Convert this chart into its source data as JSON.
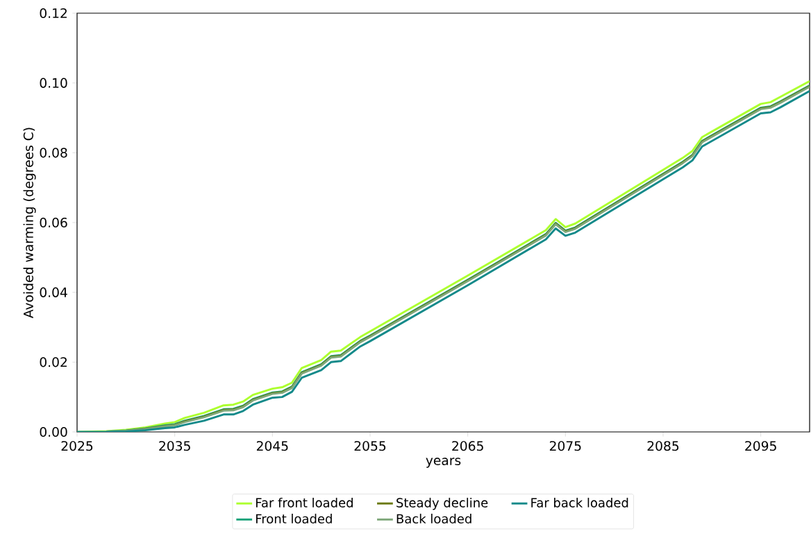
{
  "chart_data": {
    "type": "line",
    "xlabel": "years",
    "ylabel": "Avoided warming (degrees C)",
    "x": [
      2025,
      2028,
      2030,
      2032,
      2034,
      2035,
      2036,
      2038,
      2040,
      2041,
      2042,
      2043,
      2045,
      2046,
      2047,
      2048,
      2050,
      2051,
      2052,
      2054,
      2055,
      2065,
      2073,
      2074,
      2075,
      2076,
      2087,
      2088,
      2089,
      2095,
      2096,
      2097,
      2100
    ],
    "series": [
      {
        "name": "Far front loaded",
        "color": "#adff2f",
        "values": [
          0,
          0.0002,
          0.0006,
          0.0013,
          0.0024,
          0.0028,
          0.004,
          0.0055,
          0.0076,
          0.0078,
          0.0087,
          0.0106,
          0.0124,
          0.0128,
          0.0141,
          0.0183,
          0.0206,
          0.023,
          0.0233,
          0.0272,
          0.0288,
          0.0448,
          0.0578,
          0.061,
          0.0587,
          0.0597,
          0.0785,
          0.0805,
          0.0845,
          0.094,
          0.0945,
          0.096,
          0.1005
        ]
      },
      {
        "name": "Front loaded",
        "color": "#1aa37a",
        "values": [
          null,
          0.0001,
          0.0004,
          0.001,
          0.0019,
          0.0022,
          0.0032,
          0.0046,
          0.0065,
          0.0066,
          0.0075,
          0.0094,
          0.0113,
          0.0116,
          0.013,
          0.0171,
          0.0194,
          0.0217,
          0.022,
          0.0261,
          0.0276,
          0.0436,
          0.0567,
          0.0599,
          0.0577,
          0.0586,
          0.0774,
          0.0794,
          0.0834,
          0.0929,
          0.0933,
          0.0947,
          0.0993
        ]
      },
      {
        "name": "Steady decline",
        "color": "#6b7a0f",
        "values": [
          null,
          null,
          0.0003,
          0.0009,
          0.0017,
          0.002,
          0.003,
          0.0044,
          0.0063,
          0.0064,
          0.0073,
          0.0092,
          0.0111,
          0.0114,
          0.0128,
          0.0169,
          0.0192,
          0.0215,
          0.0218,
          0.0259,
          0.0274,
          0.0434,
          0.0565,
          0.0597,
          0.0575,
          0.0584,
          0.0772,
          0.0792,
          0.0832,
          0.0927,
          0.0931,
          0.0945,
          0.0991
        ]
      },
      {
        "name": "Back loaded",
        "color": "#7fa87a",
        "values": [
          null,
          0.0001,
          0.0003,
          0.0008,
          0.0016,
          0.0019,
          0.0028,
          0.0042,
          0.0061,
          0.0062,
          0.0071,
          0.009,
          0.0109,
          0.0112,
          0.0126,
          0.0167,
          0.019,
          0.0213,
          0.0216,
          0.0257,
          0.0272,
          0.0432,
          0.0563,
          0.0595,
          0.0573,
          0.0582,
          0.077,
          0.079,
          0.083,
          0.0925,
          0.0929,
          0.0943,
          0.0989
        ]
      },
      {
        "name": "Far back loaded",
        "color": "#148a8a",
        "values": [
          0,
          0,
          0.0001,
          0.0005,
          0.0011,
          0.0013,
          0.002,
          0.0032,
          0.005,
          0.005,
          0.006,
          0.0078,
          0.0098,
          0.01,
          0.0115,
          0.0155,
          0.0177,
          0.02,
          0.0203,
          0.0245,
          0.026,
          0.042,
          0.0552,
          0.0583,
          0.0562,
          0.0571,
          0.0758,
          0.0778,
          0.0818,
          0.0913,
          0.0916,
          0.093,
          0.0977
        ]
      }
    ],
    "xlim": [
      2025,
      2100
    ],
    "xticks": [
      2025,
      2035,
      2045,
      2055,
      2065,
      2075,
      2085,
      2095
    ],
    "ylim": [
      0,
      0.12
    ],
    "yticks": [
      {
        "value": 0,
        "label": "0.00"
      },
      {
        "value": 0.02,
        "label": "0.02"
      },
      {
        "value": 0.04,
        "label": "0.04"
      },
      {
        "value": 0.06,
        "label": "0.06"
      },
      {
        "value": 0.08,
        "label": "0.08"
      },
      {
        "value": 0.1,
        "label": "0.10"
      },
      {
        "value": 0.12,
        "label": "0.12"
      }
    ],
    "legend": "bottom",
    "line_style": "solid"
  }
}
